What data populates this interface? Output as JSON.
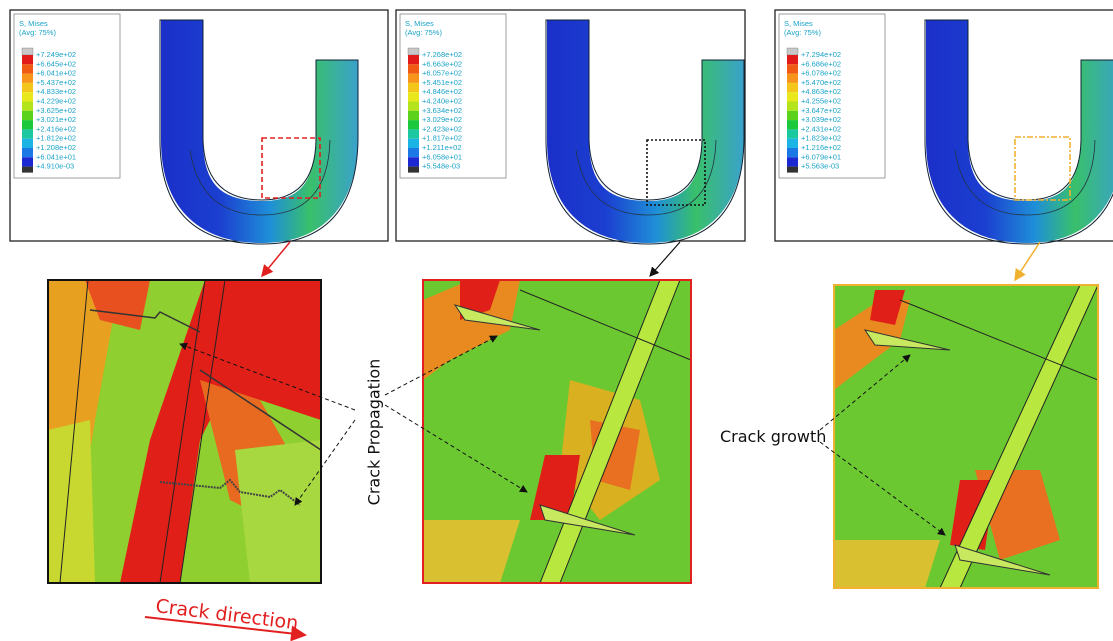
{
  "panels": [
    {
      "legend": {
        "title": "S, Mises",
        "subtitle": "(Avg: 75%)",
        "values": [
          "+7.249e+02",
          "+6.645e+02",
          "+6.041e+02",
          "+5.437e+02",
          "+4.833e+02",
          "+4.229e+02",
          "+3.625e+02",
          "+3.021e+02",
          "+2.416e+02",
          "+1.812e+02",
          "+1.208e+02",
          "+6.041e+01",
          "+4.910e-03"
        ]
      }
    },
    {
      "legend": {
        "title": "S, Mises",
        "subtitle": "(Avg: 75%)",
        "values": [
          "+7.268e+02",
          "+6.663e+02",
          "+6.057e+02",
          "+5.451e+02",
          "+4.846e+02",
          "+4.240e+02",
          "+3.634e+02",
          "+3.029e+02",
          "+2.423e+02",
          "+1.817e+02",
          "+1.211e+02",
          "+6.058e+01",
          "+5.548e-03"
        ]
      }
    },
    {
      "legend": {
        "title": "S, Mises",
        "subtitle": "(Avg: 75%)",
        "values": [
          "+7.294e+02",
          "+6.686e+02",
          "+6.078e+02",
          "+5.470e+02",
          "+4.863e+02",
          "+4.255e+02",
          "+3.647e+02",
          "+3.039e+02",
          "+2.431e+02",
          "+1.823e+02",
          "+1.216e+02",
          "+6.079e+01",
          "+5.563e-03"
        ]
      }
    }
  ],
  "labels": {
    "crack_propagation": "Crack Propagation",
    "crack_growth": "Crack growth",
    "crack_direction": "Crack direction"
  }
}
